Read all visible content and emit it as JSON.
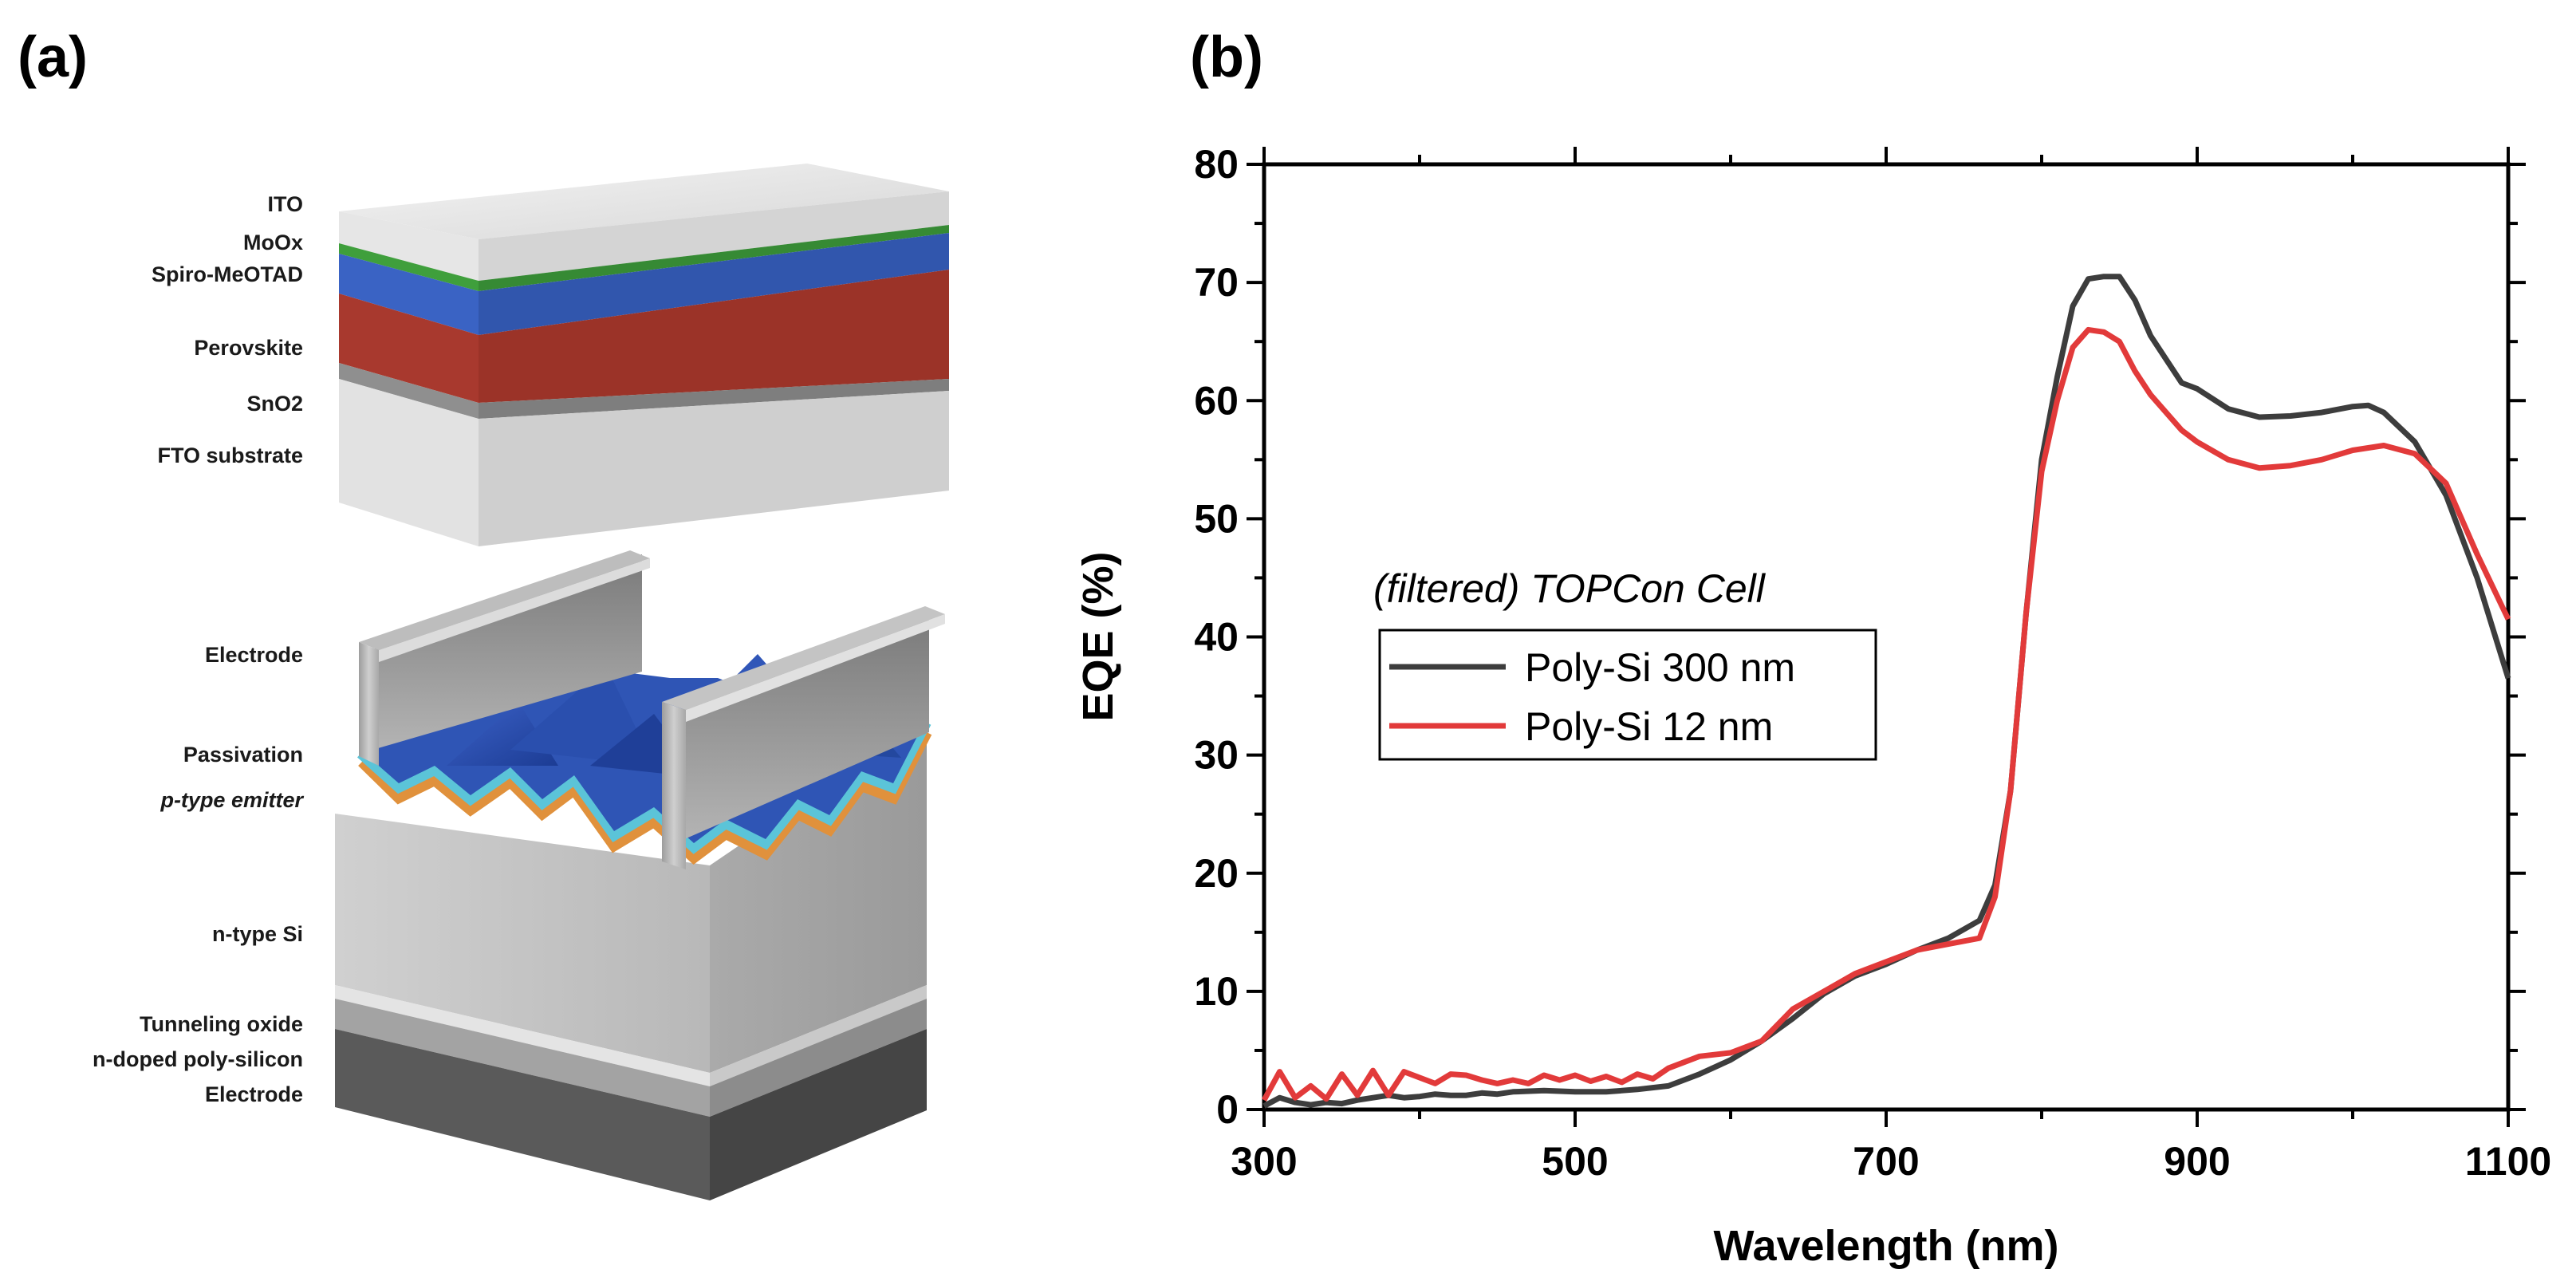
{
  "panels": {
    "a_label": "(a)",
    "b_label": "(b)"
  },
  "device": {
    "perovskite_layers": [
      {
        "id": "ito",
        "label": "ITO",
        "color": "#e4e4e4"
      },
      {
        "id": "moox",
        "label": "MoOx",
        "color": "#3f9f3c"
      },
      {
        "id": "spiro",
        "label": "Spiro-MeOTAD",
        "color": "#3a63c4"
      },
      {
        "id": "perovskite",
        "label": "Perovskite",
        "color": "#a8392e"
      },
      {
        "id": "sno2",
        "label": "SnO2",
        "color": "#8f8f8f"
      },
      {
        "id": "fto",
        "label": "FTO substrate",
        "color": "#dcdcdc"
      }
    ],
    "silicon_layers": [
      {
        "id": "electrode_top",
        "label": "Electrode",
        "color": "#b9b9b9"
      },
      {
        "id": "passivation",
        "label": "Passivation",
        "color": "#5bc4d8"
      },
      {
        "id": "p_emitter",
        "label": "p-type emitter",
        "color": "#e0913c"
      },
      {
        "id": "n_si",
        "label": "n-type Si",
        "color": "#c4c4c4"
      },
      {
        "id": "tunnel",
        "label": "Tunneling oxide",
        "color": "#d8d8d8"
      },
      {
        "id": "poly",
        "label": "n-doped poly-silicon",
        "color": "#9a9a9a"
      },
      {
        "id": "electrode_bot",
        "label": "Electrode",
        "color": "#555555"
      }
    ]
  },
  "chart_data": {
    "type": "line",
    "title": "",
    "xlabel": "Wavelength (nm)",
    "ylabel": "EQE (%)",
    "xlim": [
      300,
      1100
    ],
    "ylim": [
      0,
      80
    ],
    "xticks": [
      300,
      500,
      700,
      900,
      1100
    ],
    "yticks": [
      0,
      10,
      20,
      30,
      40,
      50,
      60,
      70,
      80
    ],
    "legend_title": "(filtered) TOPCon Cell",
    "legend_position": "center-left",
    "series": [
      {
        "name": "Poly-Si 300 nm",
        "color": "#3d3d3d",
        "x": [
          300,
          310,
          320,
          330,
          340,
          350,
          360,
          370,
          380,
          390,
          400,
          410,
          420,
          430,
          440,
          450,
          460,
          480,
          500,
          520,
          540,
          560,
          580,
          600,
          620,
          640,
          660,
          680,
          700,
          720,
          740,
          760,
          770,
          780,
          790,
          800,
          810,
          820,
          830,
          840,
          850,
          860,
          870,
          880,
          890,
          900,
          920,
          940,
          960,
          980,
          1000,
          1010,
          1020,
          1040,
          1060,
          1080,
          1100
        ],
        "values": [
          0.3,
          1.0,
          0.6,
          0.4,
          0.6,
          0.5,
          0.8,
          1.0,
          1.2,
          1.0,
          1.1,
          1.3,
          1.2,
          1.2,
          1.4,
          1.3,
          1.5,
          1.6,
          1.5,
          1.5,
          1.7,
          2.0,
          3.0,
          4.2,
          5.8,
          7.7,
          9.8,
          11.3,
          12.3,
          13.5,
          14.5,
          16.0,
          19.0,
          27.0,
          42.0,
          55.0,
          62.0,
          68.0,
          70.3,
          70.5,
          70.5,
          68.5,
          65.5,
          63.5,
          61.5,
          61.0,
          59.3,
          58.6,
          58.7,
          59.0,
          59.5,
          59.6,
          59.0,
          56.5,
          52.0,
          45.0,
          36.5
        ]
      },
      {
        "name": "Poly-Si 12 nm",
        "color": "#e23a3a",
        "x": [
          300,
          310,
          320,
          330,
          340,
          350,
          360,
          370,
          380,
          390,
          400,
          410,
          420,
          430,
          440,
          450,
          460,
          470,
          480,
          490,
          500,
          510,
          520,
          530,
          540,
          550,
          560,
          580,
          600,
          620,
          640,
          660,
          680,
          700,
          720,
          740,
          760,
          770,
          780,
          790,
          800,
          810,
          820,
          830,
          840,
          850,
          860,
          870,
          880,
          890,
          900,
          920,
          940,
          960,
          980,
          1000,
          1010,
          1020,
          1040,
          1060,
          1080,
          1100
        ],
        "values": [
          0.8,
          3.2,
          1.0,
          2.0,
          0.9,
          3.0,
          1.2,
          3.3,
          1.2,
          3.2,
          2.7,
          2.2,
          3.0,
          2.9,
          2.5,
          2.2,
          2.5,
          2.2,
          2.9,
          2.5,
          2.9,
          2.4,
          2.8,
          2.3,
          3.0,
          2.6,
          3.5,
          4.5,
          4.8,
          5.8,
          8.5,
          10.0,
          11.5,
          12.5,
          13.5,
          14.0,
          14.5,
          18.0,
          27.0,
          42.0,
          54.0,
          60.0,
          64.5,
          66.0,
          65.8,
          65.0,
          62.5,
          60.5,
          59.0,
          57.5,
          56.5,
          55.0,
          54.3,
          54.5,
          55.0,
          55.8,
          56.0,
          56.2,
          55.5,
          53.0,
          47.0,
          41.5
        ]
      }
    ]
  }
}
